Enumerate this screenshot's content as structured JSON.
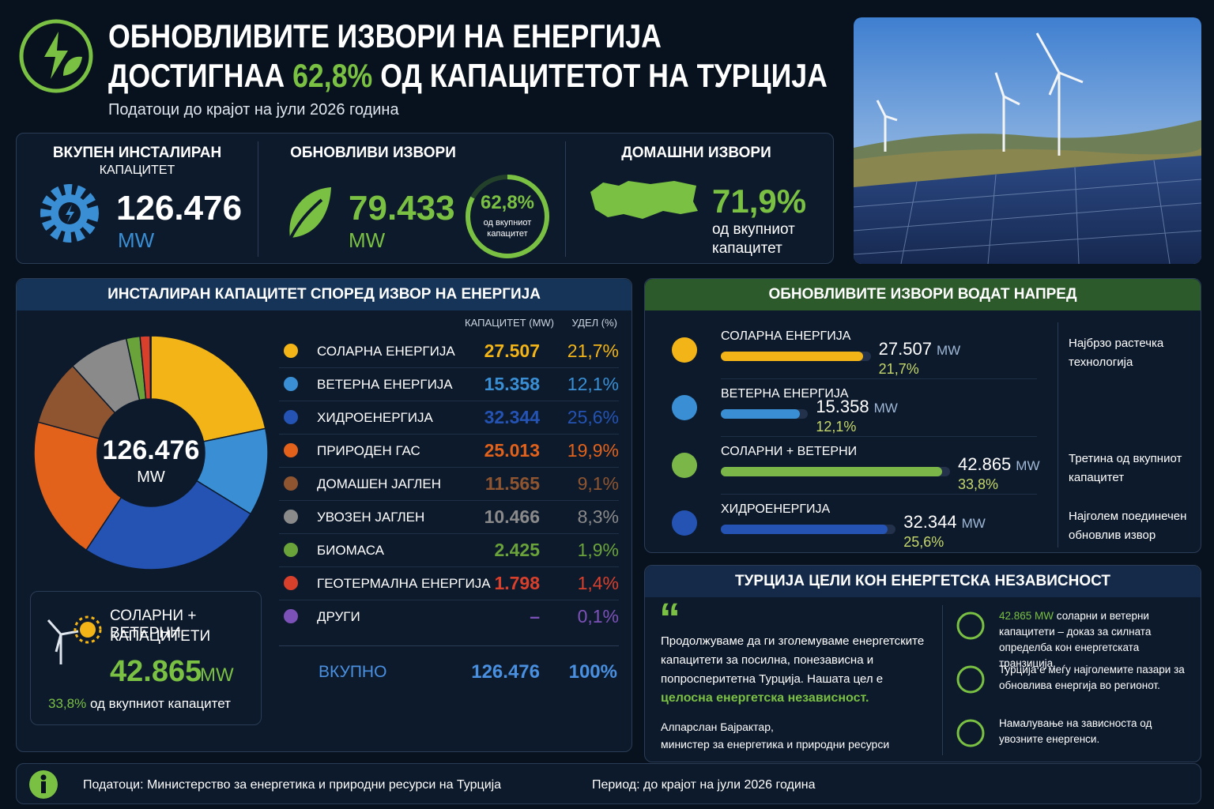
{
  "header": {
    "title_line1": "ОБНОВЛИВИТЕ ИЗВОРИ НА ЕНЕРГИЈА",
    "title_line2_start": "ДОСТИГНАА",
    "title_highlight": "62,8%",
    "title_line2_end": "ОД КАПАЦИТЕТОТ НА ТУРЦИЈА",
    "subtitle": "Податоци до крајот на јули 2026 година"
  },
  "kpis": {
    "total": {
      "label": "ВКУПЕН ИНСТАЛИРАН",
      "label2": "КАПАЦИТЕТ",
      "value": "126.476",
      "unit": "MW"
    },
    "renewable": {
      "label": "ОБНОВЛИВИ ИЗВОРИ",
      "value": "79.433",
      "unit": "MW",
      "ring_value": "62,8%",
      "ring_text": "од вкупниот капацитет"
    },
    "domestic": {
      "label": "ДОМАШНИ ИЗВОРИ",
      "value": "71,9%",
      "text": "од вкупниот капацитет"
    }
  },
  "source_panel": {
    "title": "ИНСТАЛИРАН КАПАЦИТЕТ СПОРЕД ИЗВОР НА ЕНЕРГИЈА",
    "donut_center_value": "126.476",
    "donut_center_unit": "MW",
    "col_capacity": "КАПАЦИТЕТ (MW)",
    "col_share": "УДЕЛ (%)",
    "rows": [
      {
        "name": "СОЛАРНА ЕНЕРГИЈА",
        "capacity": "27.507",
        "share": 21.7,
        "share_label": "21,7%",
        "color": "#f2b416"
      },
      {
        "name": "ВЕТЕРНА ЕНЕРГИЈА",
        "capacity": "15.358",
        "share": 12.1,
        "share_label": "12,1%",
        "color": "#3a8fd4"
      },
      {
        "name": "ХИДРОЕНЕРГИЈА",
        "capacity": "32.344",
        "share": 25.6,
        "share_label": "25,6%",
        "color": "#2453b3"
      },
      {
        "name": "ПРИРОДЕН ГАС",
        "capacity": "25.013",
        "share": 19.9,
        "share_label": "19,9%",
        "color": "#e2621b"
      },
      {
        "name": "ДОМАШЕН ЈАГЛЕН",
        "capacity": "11.565",
        "share": 9.1,
        "share_label": "9,1%",
        "color": "#8e5530"
      },
      {
        "name": "УВОЗЕН ЈАГЛЕН",
        "capacity": "10.466",
        "share": 8.3,
        "share_label": "8,3%",
        "color": "#8a8a8a"
      },
      {
        "name": "БИОМАСА",
        "capacity": "2.425",
        "share": 1.9,
        "share_label": "1,9%",
        "color": "#6aa33a"
      },
      {
        "name": "ГЕОТЕРМАЛНА ЕНЕРГИЈА",
        "capacity": "1.798",
        "share": 1.4,
        "share_label": "1,4%",
        "color": "#d9402c"
      },
      {
        "name": "ДРУГИ",
        "capacity": "–",
        "share": 0.1,
        "share_label": "0,1%",
        "color": "#7d52b8"
      }
    ],
    "total": {
      "name": "ВКУПНО",
      "capacity": "126.476",
      "share": "100%"
    }
  },
  "combined": {
    "title_line1": "СОЛАРНИ + ВЕТЕРНИ",
    "title_line2": "КАПАЦИТЕТИ",
    "value": "42.865",
    "unit": "MW",
    "share": "33,8%",
    "text": "од вкупниот капацитет"
  },
  "leaders": {
    "title": "ОБНОВЛИВИТЕ ИЗВОРИ ВОДАТ НАПРЕД",
    "items": [
      {
        "name": "СОЛАРНА ЕНЕРГИЈА",
        "value": 27507,
        "value_label": "27.507",
        "unit": "MW",
        "share": "21,7%",
        "note": "Најбрзо растечка технологија",
        "color": "#f2b416"
      },
      {
        "name": "ВЕТЕРНА ЕНЕРГИЈА",
        "value": 15358,
        "value_label": "15.358",
        "unit": "MW",
        "share": "12,1%",
        "color": "#3a8fd4"
      },
      {
        "name": "СОЛАРНИ + ВЕТЕРНИ",
        "value": 42865,
        "value_label": "42.865",
        "unit": "MW",
        "share": "33,8%",
        "note": "Третина од вкупниот капацитет",
        "color": "#7ab648"
      },
      {
        "name": "ХИДРОЕНЕРГИЈА",
        "value": 32344,
        "value_label": "32.344",
        "unit": "MW",
        "share": "25,6%",
        "note": "Најголем поединечен обновлив извор",
        "color": "#2453b3"
      }
    ]
  },
  "independence": {
    "title": "ТУРЦИЈА ЦЕЛИ КОН ЕНЕРГЕТСКА НЕЗАВИСНОСТ",
    "quote": "Продолжуваме да ги зголемуваме енергетските капацитети за посилна, понезависна и попросперитетна Турција. Нашата цел е",
    "quote_highlight": "целосна енергетска независност.",
    "author": "Алпарслан Бајрактар,",
    "author_role": "министер за енергетика и природни ресурси",
    "bullets": [
      {
        "highlight": "42.865 MW",
        "text": "соларни и ветерни капацитети – доказ за силната определба кон енергетската транзиција."
      },
      {
        "text": "Турција е меѓу најголемите пазари за обновлива енергија во регионот."
      },
      {
        "text": "Намалување на зависноста од увозните енергенси."
      }
    ]
  },
  "footer": {
    "source": "Податоци: Министерство за енергетика и природни ресурси на Турција",
    "period": "Период: до крајот на јули 2026 година"
  }
}
